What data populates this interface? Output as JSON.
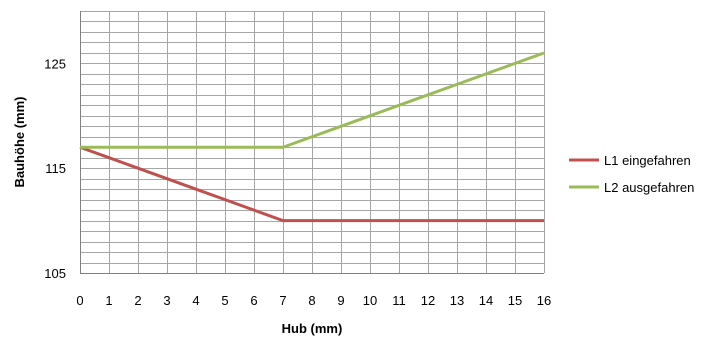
{
  "chart_data": {
    "type": "line",
    "title": "",
    "xlabel": "Hub (mm)",
    "ylabel": "Bauhöhe (mm)",
    "x": [
      0,
      1,
      2,
      3,
      4,
      5,
      6,
      7,
      8,
      9,
      10,
      11,
      12,
      13,
      14,
      15,
      16
    ],
    "xlim": [
      0,
      16
    ],
    "ylim": [
      105,
      130
    ],
    "y_ticks": [
      105,
      115,
      125
    ],
    "y_minor_step": 1,
    "grid": true,
    "legend_position": "right",
    "series": [
      {
        "name": "L1 eingefahren",
        "color": "#c0504d",
        "values": [
          117,
          116,
          115,
          114,
          113,
          112,
          111,
          110,
          110,
          110,
          110,
          110,
          110,
          110,
          110,
          110,
          110
        ]
      },
      {
        "name": "L2 ausgefahren",
        "color": "#9bbb59",
        "values": [
          117,
          117,
          117,
          117,
          117,
          117,
          117,
          117,
          118,
          119,
          120,
          121,
          122,
          123,
          124,
          125,
          126
        ]
      }
    ]
  }
}
